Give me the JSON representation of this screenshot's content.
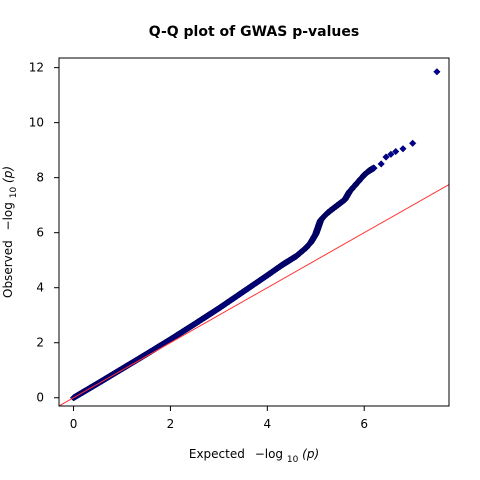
{
  "chart_data": {
    "type": "scatter",
    "title": "Q-Q plot of GWAS p-values",
    "xlabel": {
      "prefix": "Expected",
      "math": "−log",
      "sub": "10",
      "arg": "(p)"
    },
    "ylabel": {
      "prefix": "Observed",
      "math": "−log",
      "sub": "10",
      "arg": "(p)"
    },
    "xlim": [
      -0.3,
      7.75
    ],
    "ylim": [
      -0.3,
      12.35
    ],
    "xticks": [
      0,
      2,
      4,
      6
    ],
    "yticks": [
      0,
      2,
      4,
      6,
      8,
      10,
      12
    ],
    "grid": false,
    "reference_line": {
      "slope": 1,
      "intercept": 0,
      "color": "#ff3333"
    },
    "point_color": "#00008b",
    "point_edge_color": "#000060",
    "marker": "diamond",
    "series": [
      {
        "curve_x": [
          0.0,
          0.5,
          1.0,
          1.5,
          2.0,
          2.5,
          3.0,
          3.5,
          4.0,
          4.3,
          4.6,
          4.8,
          4.9,
          5.0,
          5.05,
          5.1,
          5.2,
          5.3,
          5.45,
          5.6,
          5.7,
          5.8,
          5.9,
          6.0,
          6.1,
          6.2
        ],
        "curve_y": [
          0.0,
          0.52,
          1.05,
          1.58,
          2.12,
          2.68,
          3.25,
          3.85,
          4.45,
          4.82,
          5.15,
          5.45,
          5.65,
          5.95,
          6.2,
          6.45,
          6.65,
          6.8,
          7.0,
          7.2,
          7.5,
          7.7,
          7.9,
          8.1,
          8.25,
          8.35
        ],
        "outliers_x": [
          6.35,
          6.45,
          6.55,
          6.65,
          6.8,
          7.0,
          7.5
        ],
        "outliers_y": [
          8.5,
          8.75,
          8.85,
          8.95,
          9.05,
          9.25,
          11.85
        ]
      }
    ]
  }
}
